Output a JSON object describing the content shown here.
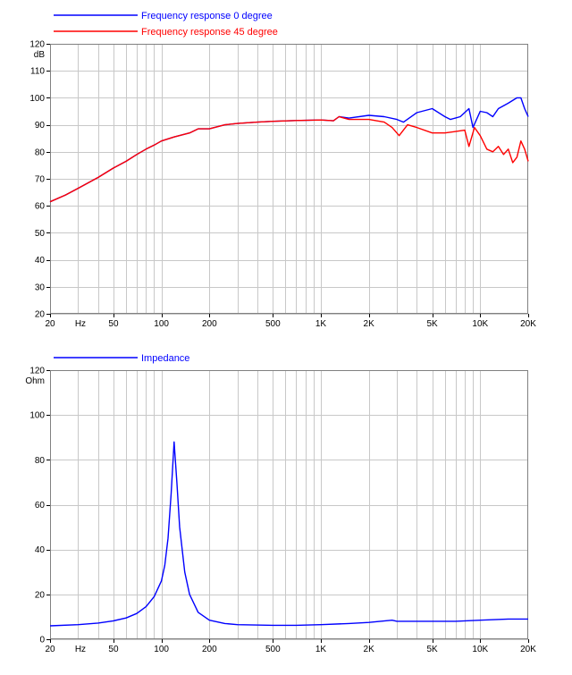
{
  "chart_data": [
    {
      "type": "line",
      "x_scale": "log",
      "xlim": [
        20,
        20000
      ],
      "ylim": [
        20,
        120
      ],
      "y_unit": "dB",
      "x_unit": "Hz",
      "x_ticks": [
        {
          "value": 20,
          "label": "20"
        },
        {
          "value": 50,
          "label": "50"
        },
        {
          "value": 100,
          "label": "100"
        },
        {
          "value": 200,
          "label": "200"
        },
        {
          "value": 500,
          "label": "500"
        },
        {
          "value": 1000,
          "label": "1K"
        },
        {
          "value": 2000,
          "label": "2K"
        },
        {
          "value": 5000,
          "label": "5K"
        },
        {
          "value": 10000,
          "label": "10K"
        },
        {
          "value": 20000,
          "label": "20K"
        }
      ],
      "y_ticks": [
        20,
        30,
        40,
        50,
        60,
        70,
        80,
        90,
        100,
        110,
        120
      ],
      "grid": true,
      "legend_position": "top-left (above plot)",
      "series": [
        {
          "name": "Frequency response 0 degree",
          "color": "#0000ff",
          "points": [
            [
              20,
              61.5
            ],
            [
              25,
              64
            ],
            [
              30,
              66.5
            ],
            [
              40,
              70.5
            ],
            [
              50,
              74
            ],
            [
              60,
              76.5
            ],
            [
              70,
              79
            ],
            [
              80,
              81
            ],
            [
              90,
              82.5
            ],
            [
              100,
              84
            ],
            [
              120,
              85.5
            ],
            [
              150,
              87
            ],
            [
              170,
              88.5
            ],
            [
              200,
              88.5
            ],
            [
              250,
              90
            ],
            [
              300,
              90.5
            ],
            [
              400,
              91
            ],
            [
              500,
              91.3
            ],
            [
              700,
              91.6
            ],
            [
              1000,
              91.8
            ],
            [
              1200,
              91.5
            ],
            [
              1300,
              93
            ],
            [
              1500,
              92.5
            ],
            [
              2000,
              93.5
            ],
            [
              2500,
              93
            ],
            [
              3000,
              92
            ],
            [
              3300,
              91
            ],
            [
              4000,
              94.5
            ],
            [
              5000,
              96
            ],
            [
              6000,
              93
            ],
            [
              6500,
              92
            ],
            [
              7500,
              93
            ],
            [
              8500,
              96
            ],
            [
              9000,
              89
            ],
            [
              10000,
              95
            ],
            [
              11000,
              94.5
            ],
            [
              12000,
              93
            ],
            [
              13000,
              96
            ],
            [
              15000,
              98
            ],
            [
              17000,
              100
            ],
            [
              18000,
              100
            ],
            [
              19000,
              96
            ],
            [
              20000,
              93
            ]
          ]
        },
        {
          "name": "Frequency response 45 degree",
          "color": "#ff0000",
          "points": [
            [
              20,
              61.5
            ],
            [
              25,
              64
            ],
            [
              30,
              66.5
            ],
            [
              40,
              70.5
            ],
            [
              50,
              74
            ],
            [
              60,
              76.5
            ],
            [
              70,
              79
            ],
            [
              80,
              81
            ],
            [
              90,
              82.5
            ],
            [
              100,
              84
            ],
            [
              120,
              85.5
            ],
            [
              150,
              87
            ],
            [
              170,
              88.5
            ],
            [
              200,
              88.5
            ],
            [
              250,
              90
            ],
            [
              300,
              90.5
            ],
            [
              400,
              91
            ],
            [
              500,
              91.3
            ],
            [
              700,
              91.6
            ],
            [
              1000,
              91.8
            ],
            [
              1200,
              91.5
            ],
            [
              1300,
              93
            ],
            [
              1500,
              92
            ],
            [
              2000,
              92
            ],
            [
              2500,
              91
            ],
            [
              2800,
              89
            ],
            [
              3100,
              86
            ],
            [
              3500,
              90
            ],
            [
              4000,
              89
            ],
            [
              5000,
              87
            ],
            [
              6000,
              87
            ],
            [
              7000,
              87.5
            ],
            [
              8000,
              88
            ],
            [
              8500,
              82
            ],
            [
              9200,
              89
            ],
            [
              10000,
              86
            ],
            [
              11000,
              81
            ],
            [
              12000,
              80
            ],
            [
              13000,
              82
            ],
            [
              14000,
              79
            ],
            [
              15000,
              81
            ],
            [
              16000,
              76
            ],
            [
              17000,
              78
            ],
            [
              18000,
              84
            ],
            [
              19000,
              81
            ],
            [
              20000,
              76.5
            ]
          ]
        }
      ]
    },
    {
      "type": "line",
      "x_scale": "log",
      "xlim": [
        20,
        20000
      ],
      "ylim": [
        0,
        120
      ],
      "y_unit": "Ohm",
      "x_unit": "Hz",
      "x_ticks": [
        {
          "value": 20,
          "label": "20"
        },
        {
          "value": 50,
          "label": "50"
        },
        {
          "value": 100,
          "label": "100"
        },
        {
          "value": 200,
          "label": "200"
        },
        {
          "value": 500,
          "label": "500"
        },
        {
          "value": 1000,
          "label": "1K"
        },
        {
          "value": 2000,
          "label": "2K"
        },
        {
          "value": 5000,
          "label": "5K"
        },
        {
          "value": 10000,
          "label": "10K"
        },
        {
          "value": 20000,
          "label": "20K"
        }
      ],
      "y_ticks": [
        0,
        20,
        40,
        60,
        80,
        100,
        120
      ],
      "grid": true,
      "legend_position": "top-left (above plot)",
      "series": [
        {
          "name": "Impedance",
          "color": "#0000ff",
          "points": [
            [
              20,
              6
            ],
            [
              30,
              6.5
            ],
            [
              40,
              7.2
            ],
            [
              50,
              8.2
            ],
            [
              60,
              9.5
            ],
            [
              70,
              11.5
            ],
            [
              80,
              14.5
            ],
            [
              90,
              19
            ],
            [
              100,
              26
            ],
            [
              105,
              33
            ],
            [
              110,
              45
            ],
            [
              115,
              65
            ],
            [
              120,
              88
            ],
            [
              125,
              70
            ],
            [
              130,
              50
            ],
            [
              140,
              30
            ],
            [
              150,
              20
            ],
            [
              170,
              12
            ],
            [
              200,
              8.5
            ],
            [
              250,
              7
            ],
            [
              300,
              6.5
            ],
            [
              500,
              6.2
            ],
            [
              700,
              6.2
            ],
            [
              1000,
              6.5
            ],
            [
              1500,
              7
            ],
            [
              2000,
              7.5
            ],
            [
              2800,
              8.5
            ],
            [
              3000,
              8
            ],
            [
              4000,
              8
            ],
            [
              5000,
              8
            ],
            [
              7000,
              8
            ],
            [
              10000,
              8.5
            ],
            [
              15000,
              9
            ],
            [
              20000,
              9
            ]
          ]
        }
      ]
    }
  ]
}
